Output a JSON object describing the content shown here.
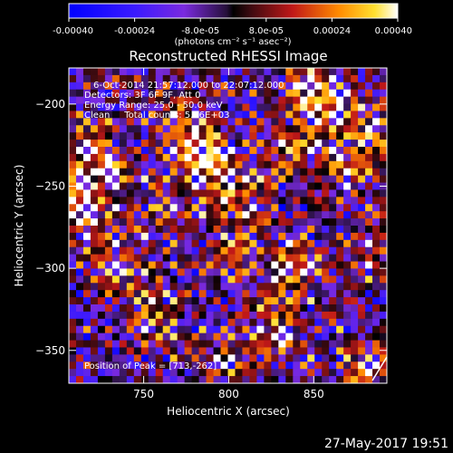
{
  "chart_data": {
    "type": "heatmap",
    "title": "Reconstructed RHESSI Image",
    "xlabel": "Heliocentric X (arcsec)",
    "ylabel": "Heliocentric Y (arcsec)",
    "xlim": [
      706,
      893
    ],
    "ylim": [
      -370,
      -178
    ],
    "x_ticks": [
      750,
      800,
      850
    ],
    "y_ticks": [
      -200,
      -250,
      -300,
      -350
    ],
    "colorbar": {
      "range": [
        -0.0004,
        0.0004
      ],
      "tick_values": [
        -0.0004,
        -0.00024,
        -8e-05,
        8e-05,
        0.00024,
        0.0004
      ],
      "tick_labels": [
        "-0.00040",
        "-0.00024",
        "-8.0e-05",
        "8.0e-05",
        "0.00024",
        "0.00040"
      ],
      "unit_label": "(photons cm⁻² s⁻¹ asec⁻²)"
    },
    "grid": false,
    "info_lines": [
      "6-Oct-2014 21:57:12.000 to 22:07:12.000",
      "Detectors: 3F 6F 9F, Att 0",
      "Energy Range: 25.0 - 50.0 keV",
      "Clean     Total counts: 5.86E+03"
    ],
    "peak_text": "Position of Peak = [713,-262]",
    "peak": [
      713,
      -262
    ],
    "blobs": [
      {
        "x": 713,
        "y": -262,
        "a": 1.0
      },
      {
        "x": 712,
        "y": -228,
        "a": 0.75
      },
      {
        "x": 730,
        "y": -240,
        "a": 0.55
      },
      {
        "x": 783,
        "y": -228,
        "a": 0.95
      },
      {
        "x": 795,
        "y": -248,
        "a": 0.7
      },
      {
        "x": 772,
        "y": -210,
        "a": 0.5
      },
      {
        "x": 860,
        "y": -205,
        "a": 0.95
      },
      {
        "x": 848,
        "y": -185,
        "a": 0.8
      },
      {
        "x": 870,
        "y": -240,
        "a": 0.6
      },
      {
        "x": 815,
        "y": -265,
        "a": 0.45
      },
      {
        "x": 838,
        "y": -300,
        "a": 0.85
      },
      {
        "x": 795,
        "y": -295,
        "a": 0.55
      },
      {
        "x": 740,
        "y": -310,
        "a": 0.5
      },
      {
        "x": 755,
        "y": -330,
        "a": 0.6
      },
      {
        "x": 830,
        "y": -340,
        "a": 0.8
      },
      {
        "x": 800,
        "y": -355,
        "a": 0.55
      },
      {
        "x": 880,
        "y": -360,
        "a": 0.7
      },
      {
        "x": 880,
        "y": -295,
        "a": 0.55
      },
      {
        "x": 725,
        "y": -290,
        "a": 0.4
      },
      {
        "x": 760,
        "y": -265,
        "a": 0.4
      },
      {
        "x": 835,
        "y": -225,
        "a": 0.5
      },
      {
        "x": 890,
        "y": -215,
        "a": 0.5
      }
    ]
  },
  "footer": {
    "date": "27-May-2017 19:51"
  }
}
